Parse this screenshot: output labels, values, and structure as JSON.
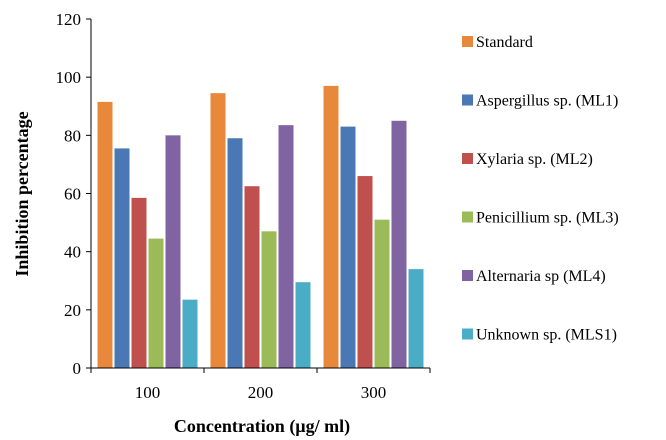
{
  "chart_data": {
    "type": "bar",
    "title": "",
    "xlabel": "Concentration (µg/ ml)",
    "ylabel": "Inhibition percentage",
    "categories": [
      "100",
      "200",
      "300"
    ],
    "ylim": [
      0,
      120
    ],
    "yticks": [
      "0",
      "20",
      "40",
      "60",
      "80",
      "100",
      "120"
    ],
    "grid": false,
    "legend_position": "right",
    "series": [
      {
        "name": "Standard",
        "color": "#E8883A",
        "values": [
          91.5,
          94.5,
          97
        ]
      },
      {
        "name": "Aspergillus sp. (ML1)",
        "color": "#4A78B5",
        "values": [
          75.5,
          79,
          83
        ]
      },
      {
        "name": "Xylaria sp. (ML2)",
        "color": "#C0504D",
        "values": [
          58.5,
          62.5,
          66
        ]
      },
      {
        "name": "Penicillium sp. (ML3)",
        "color": "#9BBB59",
        "values": [
          44.5,
          47,
          51
        ]
      },
      {
        "name": "Alternaria  sp (ML4)",
        "color": "#8064A2",
        "values": [
          80,
          83.5,
          85
        ]
      },
      {
        "name": "Unknown sp. (MLS1)",
        "color": "#4BACC6",
        "values": [
          23.5,
          29.5,
          34
        ]
      }
    ]
  }
}
